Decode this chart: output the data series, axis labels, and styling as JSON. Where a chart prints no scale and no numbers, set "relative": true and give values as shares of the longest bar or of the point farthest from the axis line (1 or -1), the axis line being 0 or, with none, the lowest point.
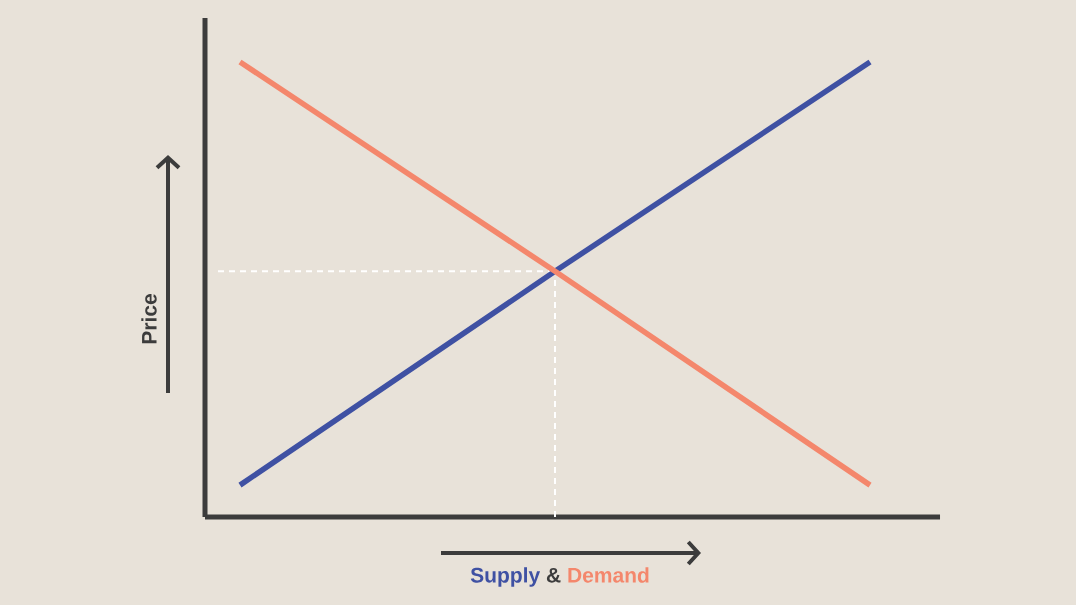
{
  "chart_data": {
    "type": "line",
    "relative": true,
    "ylabel": "Price",
    "xlabel": "&",
    "categories": [
      null,
      null,
      null
    ],
    "series": [
      {
        "name": "Supply",
        "color": "#3f51a3",
        "values": [
          0.07,
          0.54,
          1
        ]
      },
      {
        "name": "Demand",
        "color": "#f4876c",
        "values": [
          1,
          0.54,
          0.07
        ]
      }
    ],
    "ref_lines": [
      {
        "axis": "y",
        "value": 0.54,
        "color": "#ffffff",
        "line_style": "dashed"
      }
    ]
  }
}
